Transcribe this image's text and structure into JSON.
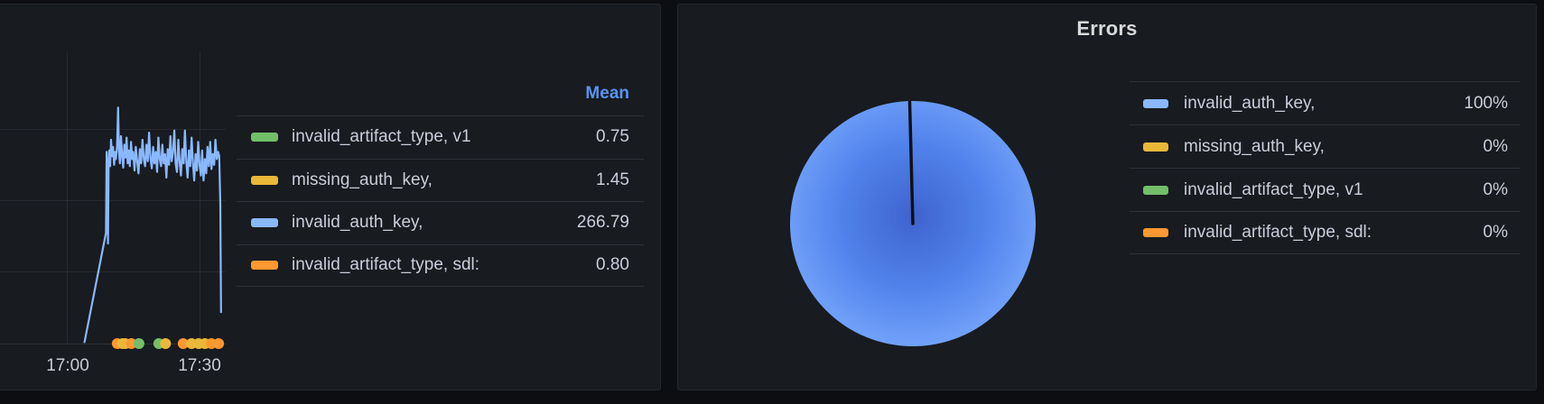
{
  "colors": {
    "green": "#73BF69",
    "yellow": "#EAB839",
    "blue": "#8AB8FF",
    "orange": "#FF9830",
    "header_blue": "#5794F2"
  },
  "chart_data": [
    {
      "type": "line",
      "panel": "left-time-series",
      "title": "",
      "x_axis": {
        "ticks": [
          "17:00",
          "17:30"
        ],
        "tick_minutes": [
          0,
          30
        ],
        "grid": true
      },
      "y_axis": {
        "range": [
          0,
          350
        ],
        "gridline_values": [
          0,
          100,
          200,
          300
        ],
        "labels_visible": false,
        "grid": true
      },
      "legend": {
        "header": "Mean",
        "position": "right-table",
        "rows": [
          {
            "label": "invalid_artifact_type, v1",
            "mean": "0.75",
            "color": "#73BF69"
          },
          {
            "label": "missing_auth_key,",
            "mean": "1.45",
            "color": "#EAB839"
          },
          {
            "label": "invalid_auth_key,",
            "mean": "266.79",
            "color": "#8AB8FF"
          },
          {
            "label": "invalid_artifact_type, sdl:",
            "mean": "0.80",
            "color": "#FF9830"
          }
        ]
      },
      "series": [
        {
          "name": "invalid_auth_key,",
          "color": "#8AB8FF",
          "mean": 266.79,
          "points_min_value": [
            [
              4,
              2
            ],
            [
              8.85,
              155
            ],
            [
              9,
              268
            ],
            [
              9.15,
              238
            ],
            [
              9.3,
              140
            ],
            [
              9.45,
              252
            ],
            [
              9.6,
              270
            ],
            [
              9.8,
              248
            ],
            [
              10,
              285
            ],
            [
              10.2,
              262
            ],
            [
              10.45,
              275
            ],
            [
              10.7,
              250
            ],
            [
              10.9,
              268
            ],
            [
              11.1,
              258
            ],
            [
              11.35,
              275
            ],
            [
              11.6,
              330
            ],
            [
              11.8,
              268
            ],
            [
              12,
              252
            ],
            [
              12.25,
              290
            ],
            [
              12.5,
              262
            ],
            [
              12.75,
              246
            ],
            [
              13,
              278
            ],
            [
              13.25,
              260
            ],
            [
              13.5,
              288
            ],
            [
              13.75,
              252
            ],
            [
              14,
              270
            ],
            [
              14.25,
              248
            ],
            [
              14.5,
              282
            ],
            [
              14.75,
              258
            ],
            [
              15,
              268
            ],
            [
              15.3,
              242
            ],
            [
              15.6,
              275
            ],
            [
              15.9,
              255
            ],
            [
              16.2,
              238
            ],
            [
              16.5,
              272
            ],
            [
              16.8,
              252
            ],
            [
              17.1,
              285
            ],
            [
              17.4,
              258
            ],
            [
              17.7,
              248
            ],
            [
              18,
              278
            ],
            [
              18.3,
              255
            ],
            [
              18.6,
              295
            ],
            [
              18.9,
              260
            ],
            [
              19.2,
              245
            ],
            [
              19.5,
              275
            ],
            [
              19.8,
              252
            ],
            [
              20.1,
              268
            ],
            [
              20.4,
              240
            ],
            [
              20.7,
              288
            ],
            [
              21,
              258
            ],
            [
              21.3,
              248
            ],
            [
              21.6,
              278
            ],
            [
              21.9,
              252
            ],
            [
              22.2,
              265
            ],
            [
              22.5,
              232
            ],
            [
              22.8,
              272
            ],
            [
              23.1,
              250
            ],
            [
              23.4,
              290
            ],
            [
              23.7,
              255
            ],
            [
              24,
              268
            ],
            [
              24.3,
              298
            ],
            [
              24.6,
              252
            ],
            [
              24.9,
              240
            ],
            [
              25.2,
              285
            ],
            [
              25.5,
              255
            ],
            [
              25.8,
              235
            ],
            [
              26.1,
              272
            ],
            [
              26.4,
              252
            ],
            [
              26.7,
              298
            ],
            [
              27,
              255
            ],
            [
              27.3,
              232
            ],
            [
              27.6,
              270
            ],
            [
              27.9,
              248
            ],
            [
              28.2,
              288
            ],
            [
              28.5,
              252
            ],
            [
              28.8,
              228
            ],
            [
              29.1,
              265
            ],
            [
              29.4,
              242
            ],
            [
              29.7,
              282
            ],
            [
              30,
              250
            ],
            [
              30.3,
              235
            ],
            [
              30.6,
              270
            ],
            [
              30.9,
              228
            ],
            [
              31.2,
              258
            ],
            [
              31.5,
              238
            ],
            [
              31.8,
              275
            ],
            [
              32.1,
              248
            ],
            [
              32.4,
              282
            ],
            [
              32.7,
              244
            ],
            [
              33,
              265
            ],
            [
              33.3,
              250
            ],
            [
              33.6,
              285
            ],
            [
              33.9,
              258
            ],
            [
              34.2,
              268
            ],
            [
              34.45,
              262
            ],
            [
              34.7,
              195
            ],
            [
              34.85,
              44
            ]
          ]
        }
      ],
      "zero_value_dots": [
        [
          11.4,
          "orange"
        ],
        [
          12.6,
          "yellow"
        ],
        [
          13.2,
          "yellow"
        ],
        [
          14.6,
          "orange"
        ],
        [
          16.3,
          "green"
        ],
        [
          20.8,
          "green"
        ],
        [
          22.3,
          "yellow"
        ],
        [
          26.3,
          "orange"
        ],
        [
          28.2,
          "yellow"
        ],
        [
          29.8,
          "yellow"
        ],
        [
          31.2,
          "yellow"
        ],
        [
          32.7,
          "orange"
        ],
        [
          34.3,
          "orange"
        ]
      ]
    },
    {
      "type": "pie",
      "panel": "right-pie",
      "title": "Errors",
      "legend_position": "right-table",
      "pie_gradient": [
        "#3F63CE",
        "#5183EC",
        "#74A4FB"
      ],
      "slices": [
        {
          "label": "invalid_auth_key,",
          "percent": "100%",
          "value": 100,
          "color": "#8AB8FF"
        },
        {
          "label": "missing_auth_key,",
          "percent": "0%",
          "value": 0,
          "color": "#EAB839"
        },
        {
          "label": "invalid_artifact_type, v1",
          "percent": "0%",
          "value": 0,
          "color": "#73BF69"
        },
        {
          "label": "invalid_artifact_type, sdl:",
          "percent": "0%",
          "value": 0,
          "color": "#FF9830"
        }
      ]
    }
  ]
}
